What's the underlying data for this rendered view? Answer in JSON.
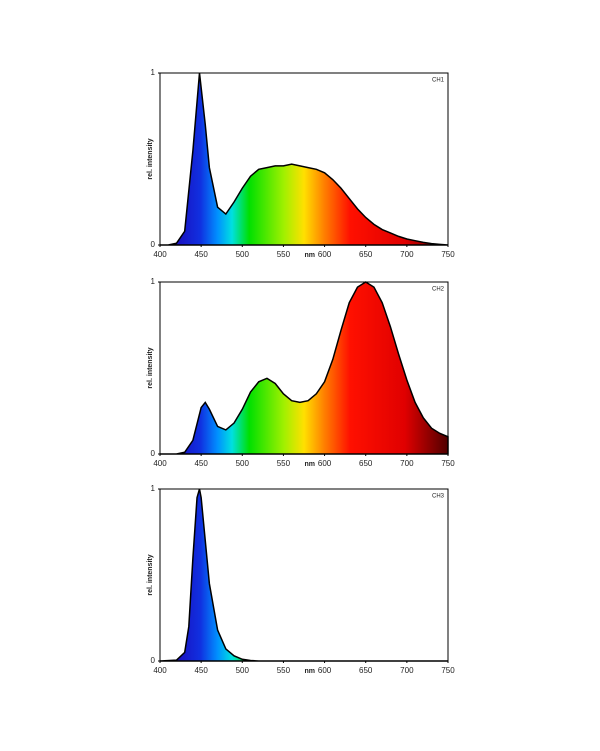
{
  "chart_data": [
    {
      "type": "area",
      "xlabel": "nm",
      "ylabel": "rel. intensity",
      "x": [
        400,
        410,
        420,
        430,
        440,
        448,
        455,
        460,
        470,
        480,
        490,
        500,
        510,
        520,
        530,
        540,
        550,
        560,
        570,
        580,
        590,
        600,
        610,
        620,
        630,
        640,
        650,
        660,
        670,
        680,
        690,
        700,
        710,
        720,
        730,
        740,
        750
      ],
      "series": [
        {
          "name": "CH1",
          "values": [
            0,
            0,
            0.01,
            0.08,
            0.55,
            1.0,
            0.7,
            0.45,
            0.22,
            0.18,
            0.25,
            0.33,
            0.4,
            0.44,
            0.45,
            0.46,
            0.46,
            0.47,
            0.46,
            0.45,
            0.44,
            0.42,
            0.38,
            0.33,
            0.27,
            0.21,
            0.16,
            0.12,
            0.09,
            0.07,
            0.05,
            0.035,
            0.025,
            0.015,
            0.008,
            0.004,
            0
          ]
        }
      ],
      "xlim": [
        400,
        750
      ],
      "xticks": [
        400,
        450,
        500,
        550,
        600,
        650,
        700,
        750
      ],
      "ylim": [
        0,
        1
      ],
      "yticks": [
        0,
        1
      ]
    },
    {
      "type": "area",
      "xlabel": "nm",
      "ylabel": "rel. intensity",
      "x": [
        400,
        420,
        430,
        440,
        450,
        455,
        460,
        470,
        480,
        490,
        500,
        510,
        520,
        530,
        540,
        550,
        560,
        570,
        580,
        590,
        600,
        610,
        620,
        630,
        640,
        650,
        660,
        670,
        680,
        690,
        700,
        710,
        720,
        730,
        740,
        750
      ],
      "series": [
        {
          "name": "CH2",
          "values": [
            0,
            0,
            0.01,
            0.08,
            0.27,
            0.3,
            0.26,
            0.16,
            0.14,
            0.18,
            0.26,
            0.36,
            0.42,
            0.44,
            0.41,
            0.35,
            0.31,
            0.3,
            0.31,
            0.35,
            0.42,
            0.55,
            0.72,
            0.88,
            0.97,
            1.0,
            0.97,
            0.88,
            0.74,
            0.58,
            0.43,
            0.3,
            0.21,
            0.15,
            0.12,
            0.1
          ]
        }
      ],
      "xlim": [
        400,
        750
      ],
      "xticks": [
        400,
        450,
        500,
        550,
        600,
        650,
        700,
        750
      ],
      "ylim": [
        0,
        1
      ],
      "yticks": [
        0,
        1
      ]
    },
    {
      "type": "area",
      "xlabel": "nm",
      "ylabel": "rel. intensity",
      "x": [
        400,
        420,
        430,
        435,
        440,
        445,
        448,
        450,
        455,
        460,
        470,
        480,
        490,
        500,
        510,
        520,
        750
      ],
      "series": [
        {
          "name": "CH3",
          "values": [
            0,
            0.005,
            0.05,
            0.2,
            0.6,
            0.95,
            1.0,
            0.95,
            0.7,
            0.45,
            0.18,
            0.07,
            0.03,
            0.01,
            0.003,
            0,
            0
          ]
        }
      ],
      "xlim": [
        400,
        750
      ],
      "xticks": [
        400,
        450,
        500,
        550,
        600,
        650,
        700,
        750
      ],
      "ylim": [
        0,
        1
      ],
      "yticks": [
        0,
        1
      ]
    }
  ]
}
